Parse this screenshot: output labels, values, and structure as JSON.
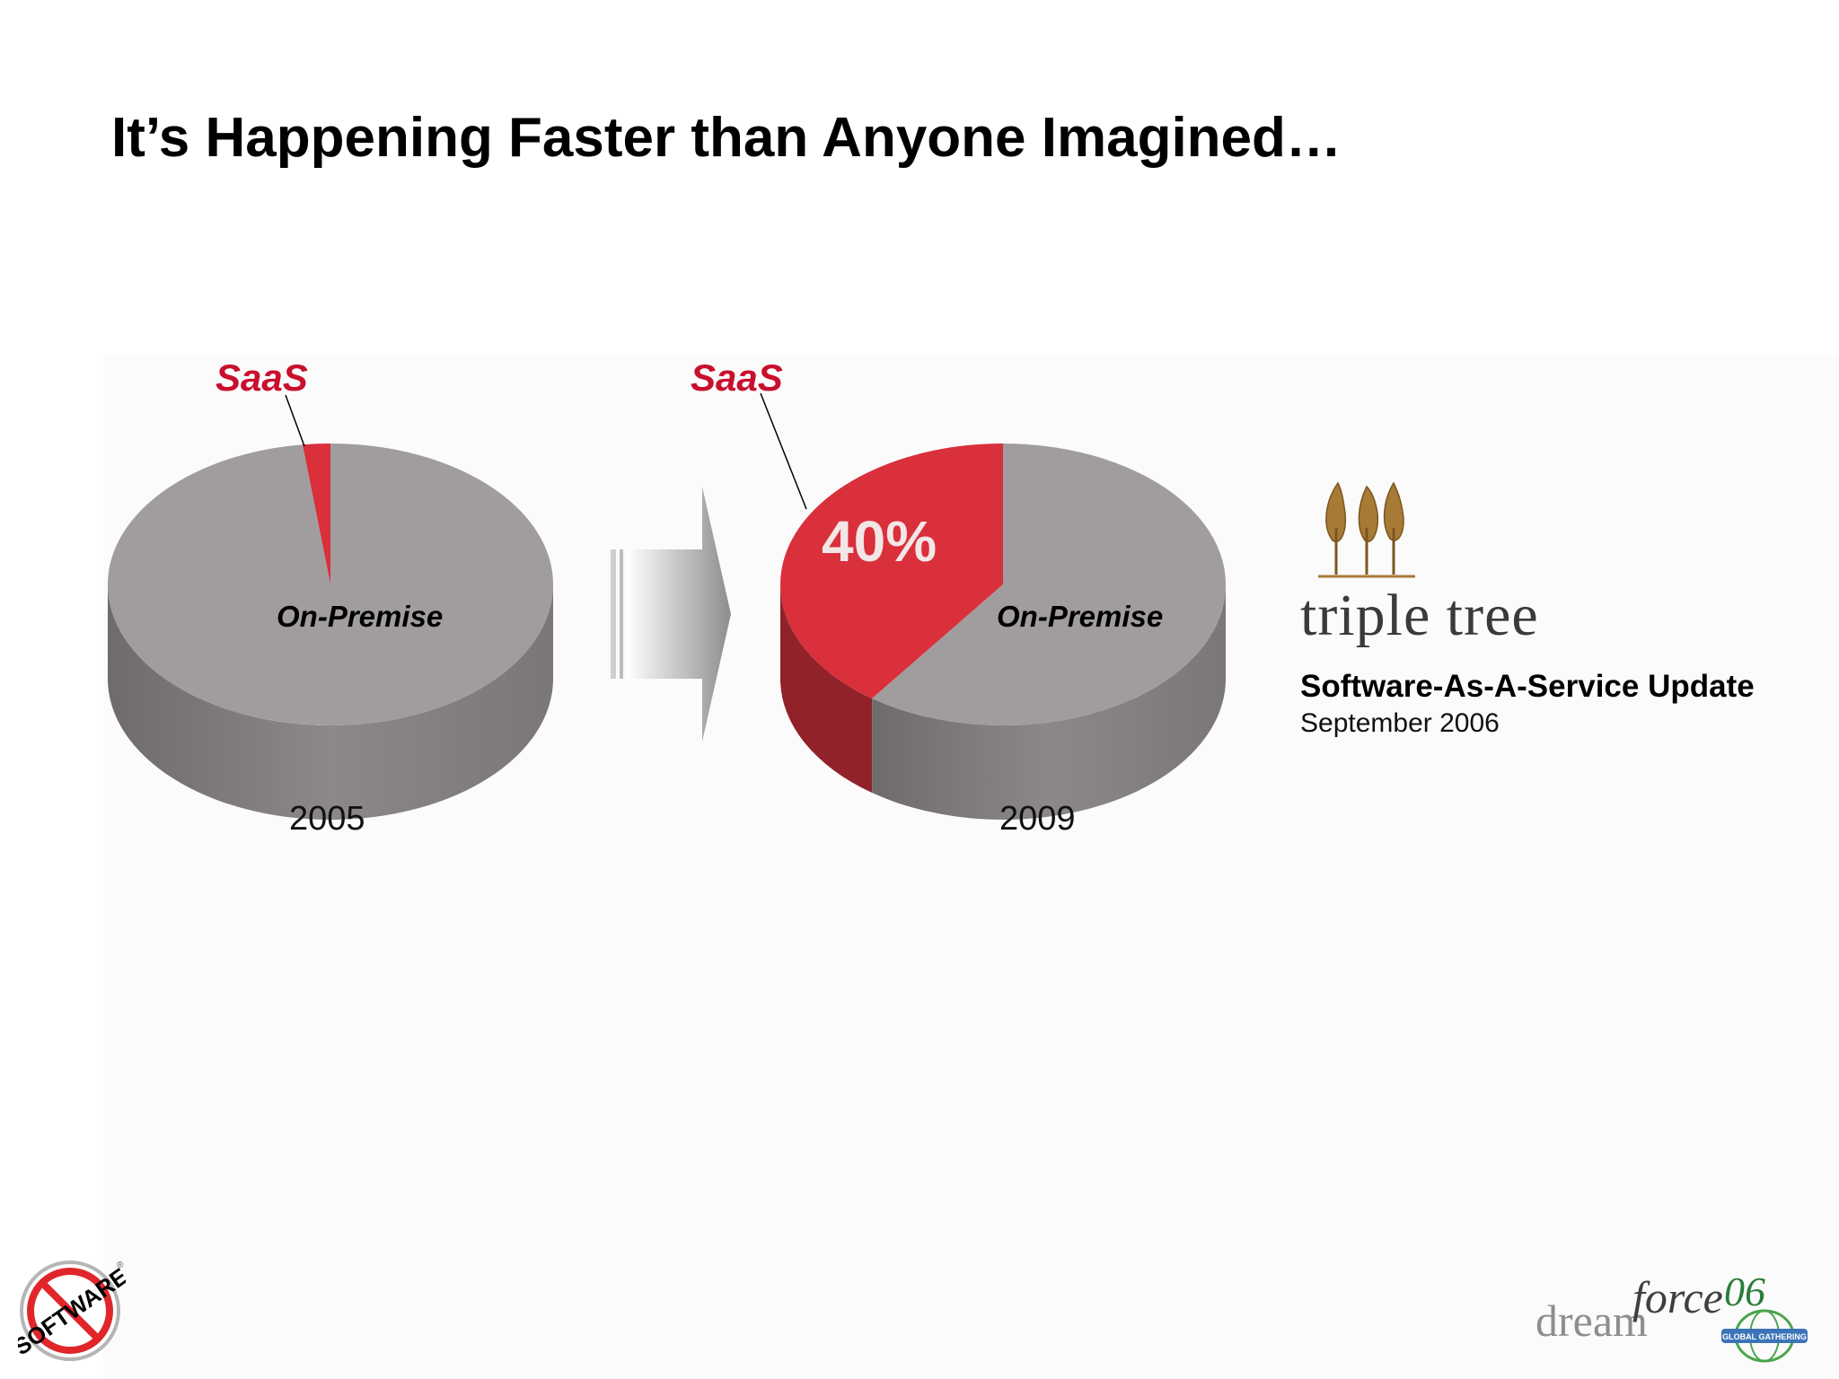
{
  "slide": {
    "title": "It’s Happening Faster than Anyone Imagined…"
  },
  "chart_data": [
    {
      "type": "pie",
      "x_label": "2005",
      "slices": [
        {
          "name": "SaaS",
          "value": 2,
          "color": "#d9303b"
        },
        {
          "name": "On-Premise",
          "value": 98,
          "color": "#a19d9f"
        }
      ],
      "data_labels": []
    },
    {
      "type": "pie",
      "x_label": "2009",
      "slices": [
        {
          "name": "SaaS",
          "value": 40,
          "color": "#d9303b"
        },
        {
          "name": "On-Premise",
          "value": 60,
          "color": "#a19d9f"
        }
      ],
      "data_labels": [
        "40%"
      ]
    }
  ],
  "source": {
    "logo_text": "triple tree",
    "report_title": "Software-As-A-Service Update",
    "report_date": "September 2006"
  },
  "logos": {
    "left": "SOFTWARE",
    "right_dream": "dream",
    "right_force": "force",
    "right_year": "06",
    "right_tagline": "GLOBAL GATHERING"
  }
}
